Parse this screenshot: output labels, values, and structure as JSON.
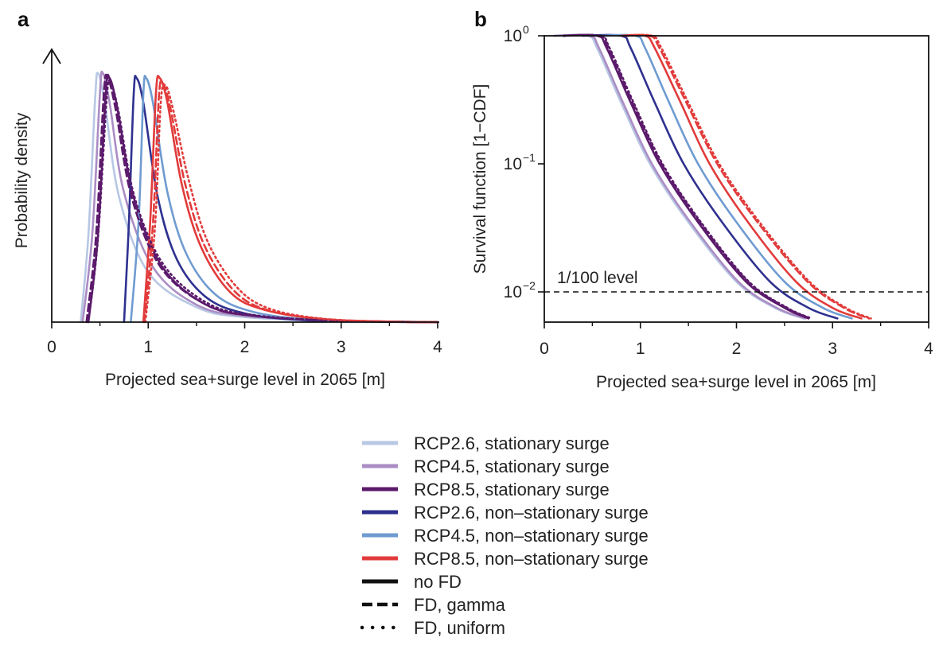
{
  "chart_data": [
    {
      "panel": "a",
      "type": "line",
      "title": "",
      "xlabel": "Projected sea+surge level in 2065 [m]",
      "ylabel": "Probability density",
      "xlim": [
        0,
        4
      ],
      "x_ticks": [
        "0",
        "1",
        "2",
        "3",
        "4"
      ],
      "y_ticks_shown": false,
      "y_axis_arrow": true,
      "series": [
        {
          "name": "RCP2.6, stationary surge",
          "style": "solid",
          "x": [
            0.3,
            0.38,
            0.45,
            0.48,
            0.55,
            0.7,
            1.0,
            1.5,
            2.0,
            3.0,
            4.0
          ],
          "y": [
            0.0,
            0.35,
            0.9,
            1.0,
            0.88,
            0.5,
            0.2,
            0.06,
            0.02,
            0.004,
            0.0
          ]
        },
        {
          "name": "RCP4.5, stationary surge",
          "style": "solid",
          "x": [
            0.32,
            0.42,
            0.5,
            0.53,
            0.6,
            0.75,
            1.05,
            1.5,
            2.0,
            3.0,
            4.0
          ],
          "y": [
            0.0,
            0.35,
            0.92,
            1.0,
            0.88,
            0.52,
            0.22,
            0.07,
            0.025,
            0.005,
            0.0
          ]
        },
        {
          "name": "RCP8.5, stationary surge",
          "style": "solid",
          "x": [
            0.38,
            0.48,
            0.56,
            0.6,
            0.68,
            0.85,
            1.15,
            1.6,
            2.1,
            3.0,
            4.0
          ],
          "y": [
            0.0,
            0.35,
            0.92,
            0.98,
            0.86,
            0.5,
            0.22,
            0.07,
            0.025,
            0.005,
            0.0
          ]
        },
        {
          "name": "RCP2.6, non–stationary surge",
          "style": "solid",
          "x": [
            0.75,
            0.8,
            0.85,
            0.88,
            0.95,
            1.1,
            1.3,
            1.6,
            2.0,
            2.6,
            3.5,
            4.0
          ],
          "y": [
            0.0,
            0.4,
            0.92,
            0.98,
            0.88,
            0.5,
            0.25,
            0.1,
            0.035,
            0.008,
            0.001,
            0.0
          ]
        },
        {
          "name": "RCP4.5, non–stationary surge",
          "style": "solid",
          "x": [
            0.82,
            0.9,
            0.95,
            0.98,
            1.05,
            1.2,
            1.4,
            1.7,
            2.1,
            2.7,
            3.5,
            4.0
          ],
          "y": [
            0.0,
            0.4,
            0.92,
            0.98,
            0.88,
            0.52,
            0.27,
            0.11,
            0.04,
            0.01,
            0.002,
            0.0
          ]
        },
        {
          "name": "RCP8.5, non–stationary surge",
          "style": "solid",
          "x": [
            0.95,
            1.02,
            1.08,
            1.12,
            1.2,
            1.35,
            1.55,
            1.85,
            2.2,
            2.8,
            3.5,
            4.0
          ],
          "y": [
            0.0,
            0.4,
            0.92,
            0.98,
            0.88,
            0.55,
            0.3,
            0.12,
            0.05,
            0.012,
            0.002,
            0.0
          ]
        },
        {
          "name": "",
          "style": "dashed",
          "color_ref": "RCP8.5, stationary surge",
          "x": [
            0.36,
            0.46,
            0.54,
            0.58,
            0.66,
            0.83,
            1.13,
            1.6,
            2.1,
            3.0,
            4.0
          ],
          "y": [
            0.0,
            0.35,
            0.92,
            0.98,
            0.86,
            0.5,
            0.22,
            0.07,
            0.025,
            0.005,
            0.0
          ]
        },
        {
          "name": "",
          "style": "dashed",
          "color_ref": "RCP8.5, non–stationary surge",
          "x": [
            0.96,
            1.05,
            1.11,
            1.15,
            1.23,
            1.38,
            1.58,
            1.88,
            2.22,
            2.8,
            3.5,
            4.0
          ],
          "y": [
            0.0,
            0.4,
            0.9,
            0.96,
            0.86,
            0.56,
            0.31,
            0.13,
            0.05,
            0.013,
            0.002,
            0.0
          ]
        },
        {
          "name": "",
          "style": "dotted",
          "color_ref": "RCP8.5, stationary surge",
          "x": [
            0.38,
            0.48,
            0.57,
            0.61,
            0.69,
            0.86,
            1.16,
            1.62,
            2.12,
            3.0,
            4.0
          ],
          "y": [
            0.0,
            0.34,
            0.9,
            0.96,
            0.85,
            0.5,
            0.23,
            0.075,
            0.027,
            0.005,
            0.0
          ]
        },
        {
          "name": "",
          "style": "dotted",
          "color_ref": "RCP8.5, non–stationary surge",
          "x": [
            0.97,
            1.07,
            1.13,
            1.18,
            1.26,
            1.42,
            1.62,
            1.92,
            2.25,
            2.8,
            3.5,
            4.0
          ],
          "y": [
            0.0,
            0.38,
            0.88,
            0.95,
            0.85,
            0.57,
            0.32,
            0.14,
            0.055,
            0.014,
            0.002,
            0.0
          ]
        }
      ]
    },
    {
      "panel": "b",
      "type": "line",
      "title": "",
      "xlabel": "Projected sea+surge level in 2065 [m]",
      "ylabel": "Survival function [1−CDF]",
      "xlim": [
        0,
        4
      ],
      "ylim": [
        0.0062,
        1
      ],
      "yscale": "log",
      "x_ticks": [
        "0",
        "1",
        "2",
        "3",
        "4"
      ],
      "y_ticks": [
        {
          "base": "10",
          "exp": "0",
          "value": 1
        },
        {
          "base": "10",
          "exp": "−1",
          "value": 0.1
        },
        {
          "base": "10",
          "exp": "−2",
          "value": 0.01
        }
      ],
      "reference_line": {
        "label": "1/100 level",
        "value": 0.01,
        "style": "dashed"
      },
      "series": [
        {
          "name": "RCP2.6, stationary surge",
          "style": "solid",
          "x": [
            0.1,
            0.45,
            0.55,
            0.8,
            1.1,
            1.5,
            2.0,
            2.4,
            2.7
          ],
          "y": [
            1,
            1,
            0.8,
            0.3,
            0.1,
            0.035,
            0.012,
            0.0075,
            0.0062
          ]
        },
        {
          "name": "RCP4.5, stationary surge",
          "style": "solid",
          "x": [
            0.1,
            0.47,
            0.57,
            0.82,
            1.12,
            1.52,
            2.02,
            2.42,
            2.72
          ],
          "y": [
            1,
            1,
            0.8,
            0.3,
            0.1,
            0.035,
            0.012,
            0.0075,
            0.0062
          ]
        },
        {
          "name": "RCP8.5, stationary surge",
          "style": "solid",
          "x": [
            0.2,
            0.55,
            0.65,
            0.9,
            1.2,
            1.6,
            2.1,
            2.5,
            2.75
          ],
          "y": [
            1,
            1,
            0.8,
            0.3,
            0.1,
            0.035,
            0.012,
            0.0075,
            0.0062
          ]
        },
        {
          "name": "RCP2.6, non–stationary surge",
          "style": "solid",
          "x": [
            0.4,
            0.8,
            0.9,
            1.15,
            1.45,
            1.85,
            2.35,
            2.75,
            3.05
          ],
          "y": [
            1,
            1,
            0.8,
            0.3,
            0.1,
            0.035,
            0.012,
            0.0075,
            0.0062
          ]
        },
        {
          "name": "RCP4.5, non–stationary surge",
          "style": "solid",
          "x": [
            0.6,
            0.95,
            1.05,
            1.3,
            1.6,
            2.0,
            2.5,
            2.9,
            3.2
          ],
          "y": [
            1,
            1,
            0.8,
            0.3,
            0.1,
            0.035,
            0.012,
            0.0075,
            0.0062
          ]
        },
        {
          "name": "RCP8.5, non–stationary surge",
          "style": "solid",
          "x": [
            0.8,
            1.05,
            1.15,
            1.42,
            1.72,
            2.12,
            2.62,
            3.0,
            3.3
          ],
          "y": [
            1,
            1,
            0.8,
            0.3,
            0.1,
            0.035,
            0.012,
            0.0075,
            0.0062
          ]
        },
        {
          "name": "",
          "style": "dashed",
          "color_ref": "RCP8.5, non–stationary surge",
          "x": [
            0.85,
            1.1,
            1.2,
            1.48,
            1.8,
            2.22,
            2.74,
            3.12,
            3.38
          ],
          "y": [
            1,
            1,
            0.8,
            0.3,
            0.1,
            0.035,
            0.012,
            0.0075,
            0.0062
          ]
        },
        {
          "name": "",
          "style": "dashed",
          "color_ref": "RCP8.5, stationary surge",
          "x": [
            0.2,
            0.57,
            0.67,
            0.92,
            1.22,
            1.62,
            2.12,
            2.52,
            2.77
          ],
          "y": [
            1,
            1,
            0.8,
            0.3,
            0.1,
            0.035,
            0.012,
            0.0075,
            0.0062
          ]
        },
        {
          "name": "",
          "style": "dotted",
          "color_ref": "RCP8.5, non–stationary surge",
          "x": [
            0.86,
            1.12,
            1.22,
            1.5,
            1.82,
            2.24,
            2.76,
            3.14,
            3.4
          ],
          "y": [
            1,
            1,
            0.8,
            0.3,
            0.1,
            0.035,
            0.012,
            0.0075,
            0.0062
          ]
        },
        {
          "name": "",
          "style": "dotted",
          "color_ref": "RCP8.5, stationary surge",
          "x": [
            0.2,
            0.58,
            0.68,
            0.93,
            1.23,
            1.63,
            2.13,
            2.53,
            2.78
          ],
          "y": [
            1,
            1,
            0.8,
            0.3,
            0.1,
            0.035,
            0.012,
            0.0075,
            0.0062
          ]
        }
      ]
    }
  ],
  "panels": {
    "a_label": "a",
    "b_label": "b"
  },
  "legend": {
    "items": [
      {
        "label": "RCP2.6, stationary surge",
        "color": "#b7c7e4",
        "style": "solid"
      },
      {
        "label": "RCP4.5, stationary surge",
        "color": "#ab8cc4",
        "style": "solid"
      },
      {
        "label": "RCP8.5, stationary surge",
        "color": "#5b1a6b",
        "style": "solid"
      },
      {
        "label": "RCP2.6, non–stationary surge",
        "color": "#2e318f",
        "style": "solid"
      },
      {
        "label": "RCP4.5, non–stationary surge",
        "color": "#6f9bd1",
        "style": "solid"
      },
      {
        "label": "RCP8.5, non–stationary surge",
        "color": "#e23b3b",
        "style": "solid"
      },
      {
        "label": "no FD",
        "color": "#111111",
        "style": "solid"
      },
      {
        "label": "FD, gamma",
        "color": "#111111",
        "style": "dashed"
      },
      {
        "label": "FD, uniform",
        "color": "#111111",
        "style": "dotted"
      }
    ]
  },
  "colors": {
    "RCP2.6, stationary surge": "#b7c7e4",
    "RCP4.5, stationary surge": "#ab8cc4",
    "RCP8.5, stationary surge": "#5b1a6b",
    "RCP2.6, non–stationary surge": "#2e318f",
    "RCP4.5, non–stationary surge": "#6f9bd1",
    "RCP8.5, non–stationary surge": "#e23b3b"
  }
}
